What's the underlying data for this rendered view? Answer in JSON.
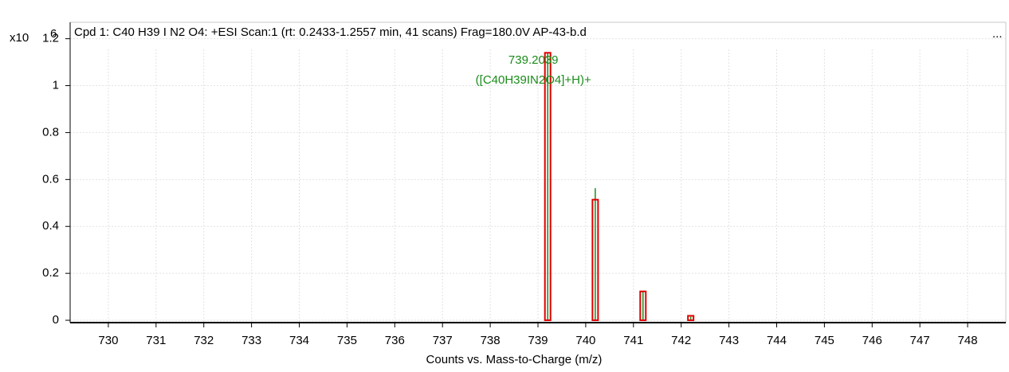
{
  "chart_data": {
    "type": "spectrum",
    "title": "Cpd 1: C40 H39 I N2 O4: +ESI Scan:1 (rt: 0.2433-1.2557 min, 41 scans) Frag=180.0V AP-43-b.d",
    "menu": "...",
    "y_multiplier": "x10",
    "y_exponent": 6,
    "xlabel": "Counts vs. Mass-to-Charge (m/z)",
    "annotations": [
      {
        "x": 739.2039,
        "lines": [
          "739.2039",
          "([C40H39IN2O4]+H)+"
        ],
        "color": "#1a8c1a"
      }
    ],
    "series": [
      {
        "mark": "stick",
        "color": "#1a8c1a",
        "x": [
          739.2039,
          740.2,
          741.2,
          742.2
        ],
        "values": [
          1.14,
          0.563,
          0.12,
          0.015
        ]
      },
      {
        "mark": "box",
        "color": "#e00000",
        "x": [
          739.2039,
          740.2,
          741.2,
          742.2
        ],
        "values": [
          1.14,
          0.514,
          0.123,
          0.019
        ]
      }
    ],
    "xlim": [
      729.2,
      748.8
    ],
    "ylim": [
      -0.01,
      1.27
    ],
    "xticks": [
      730,
      731,
      732,
      733,
      734,
      735,
      736,
      737,
      738,
      739,
      740,
      741,
      742,
      743,
      744,
      745,
      746,
      747,
      748
    ],
    "yticks": [
      0,
      0.2,
      0.4,
      0.6,
      0.8,
      1,
      1.2
    ],
    "grid": true
  }
}
